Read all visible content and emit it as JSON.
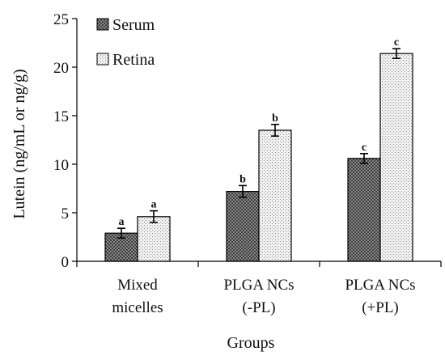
{
  "chart_data": {
    "type": "bar",
    "xlabel": "Groups",
    "ylabel": "Lutein (ng/mL or ng/g)",
    "ylim": [
      0,
      25
    ],
    "yticks": [
      0,
      5,
      10,
      15,
      20,
      25
    ],
    "categories": [
      [
        "Mixed",
        "micelles"
      ],
      [
        "PLGA NCs",
        "(-PL)"
      ],
      [
        "PLGA NCs",
        "(+PL)"
      ]
    ],
    "series": [
      {
        "name": "Serum",
        "pattern": "dark-crosshatch",
        "values": [
          2.9,
          7.2,
          10.6
        ],
        "errors": [
          0.5,
          0.6,
          0.5
        ],
        "labels": [
          "a",
          "b",
          "c"
        ]
      },
      {
        "name": "Retina",
        "pattern": "light-dotted",
        "values": [
          4.6,
          13.5,
          21.4
        ],
        "errors": [
          0.6,
          0.6,
          0.5
        ],
        "labels": [
          "a",
          "b",
          "c"
        ]
      }
    ],
    "legend_position": "top-left",
    "grid": false
  }
}
